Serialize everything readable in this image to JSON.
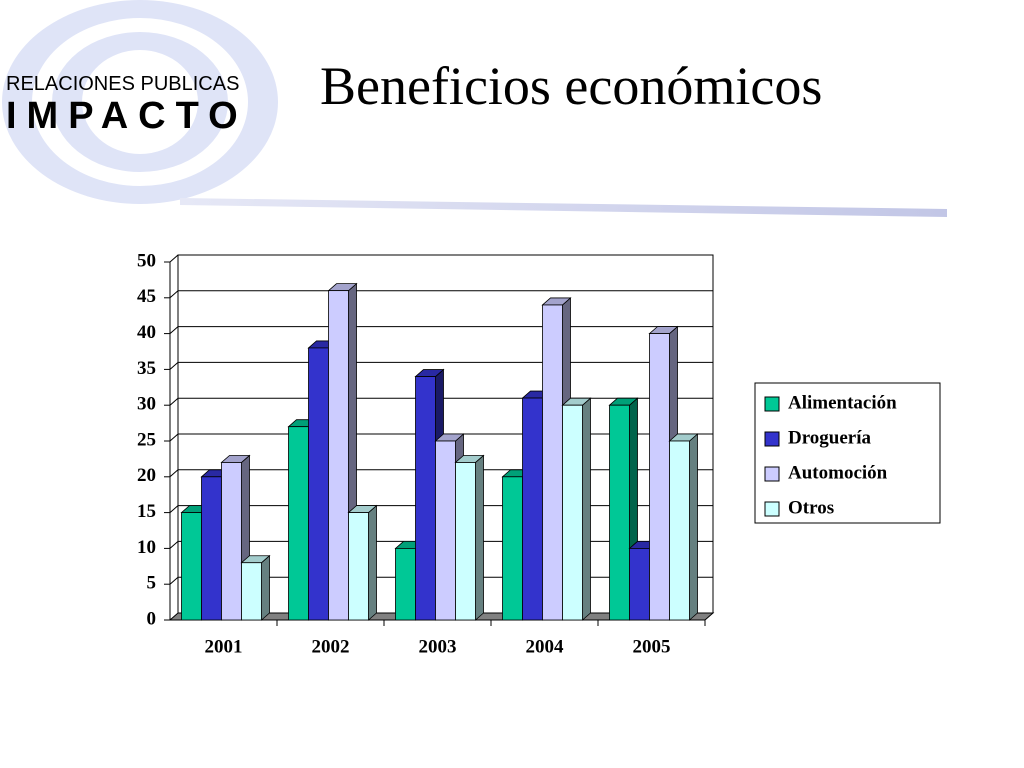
{
  "logo": {
    "line1": "RELACIONES  PUBLICAS",
    "line2": "IMPACTO"
  },
  "chart_data": {
    "type": "bar3d",
    "title": "Beneficios económicos",
    "categories": [
      "2001",
      "2002",
      "2003",
      "2004",
      "2005"
    ],
    "series": [
      {
        "name": "Alimentación",
        "color": "#00c896",
        "values": [
          15,
          27,
          10,
          20,
          30
        ]
      },
      {
        "name": "Droguería",
        "color": "#3333cc",
        "values": [
          20,
          38,
          34,
          31,
          10
        ]
      },
      {
        "name": "Automoción",
        "color": "#ccccff",
        "values": [
          22,
          46,
          25,
          44,
          40
        ]
      },
      {
        "name": "Otros",
        "color": "#ccffff",
        "values": [
          8,
          15,
          22,
          30,
          25
        ]
      }
    ],
    "ylim": [
      0,
      50
    ],
    "yticks": [
      0,
      5,
      10,
      15,
      20,
      25,
      30,
      35,
      40,
      45,
      50
    ],
    "grid": true,
    "legend": "right"
  }
}
